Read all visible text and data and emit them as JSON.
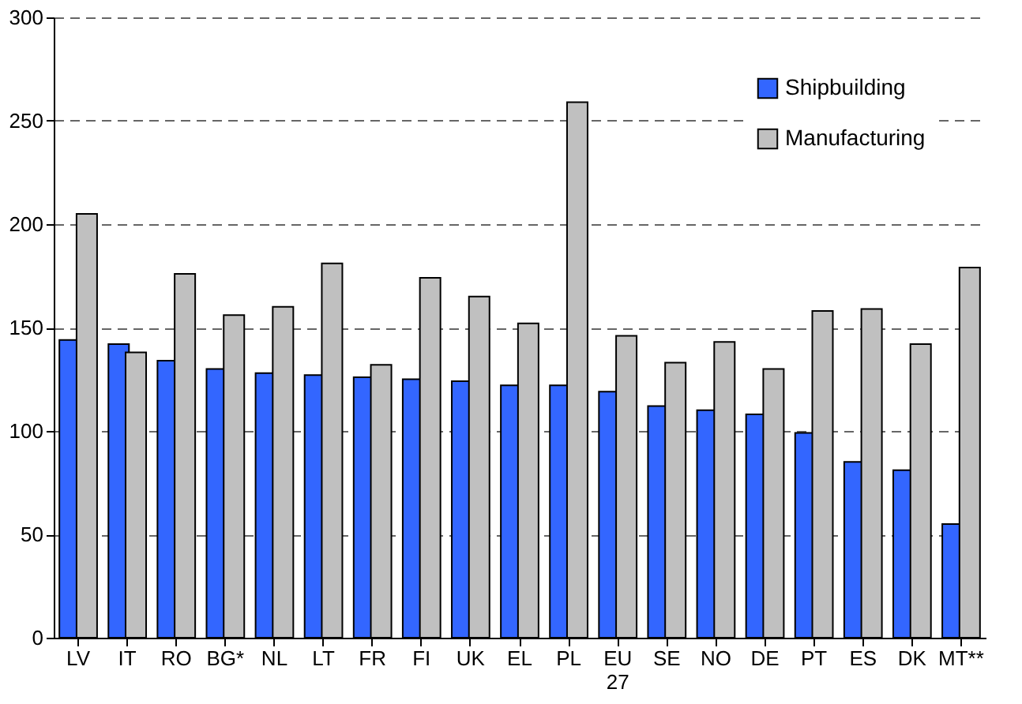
{
  "chart_data": {
    "type": "bar",
    "categories": [
      "LV",
      "IT",
      "RO",
      "BG*",
      "NL",
      "LT",
      "FR",
      "FI",
      "UK",
      "EL",
      "PL",
      "EU 27",
      "SE",
      "NO",
      "DE",
      "PT",
      "ES",
      "DK",
      "MT**"
    ],
    "series": [
      {
        "name": "Shipbuilding",
        "color": "#3366ff",
        "values": [
          144,
          142,
          134,
          130,
          128,
          127,
          126,
          125,
          124,
          122,
          122,
          119,
          112,
          110,
          108,
          99,
          85,
          81,
          55
        ]
      },
      {
        "name": "Manufacturing",
        "color": "#c0c0c0",
        "values": [
          205,
          138,
          176,
          156,
          160,
          181,
          132,
          174,
          165,
          152,
          259,
          146,
          133,
          143,
          130,
          158,
          159,
          142,
          179
        ]
      }
    ],
    "ylim": [
      0,
      300
    ],
    "yticks": [
      0,
      50,
      100,
      150,
      200,
      250,
      300
    ],
    "grid": "y",
    "legend": "top right"
  }
}
